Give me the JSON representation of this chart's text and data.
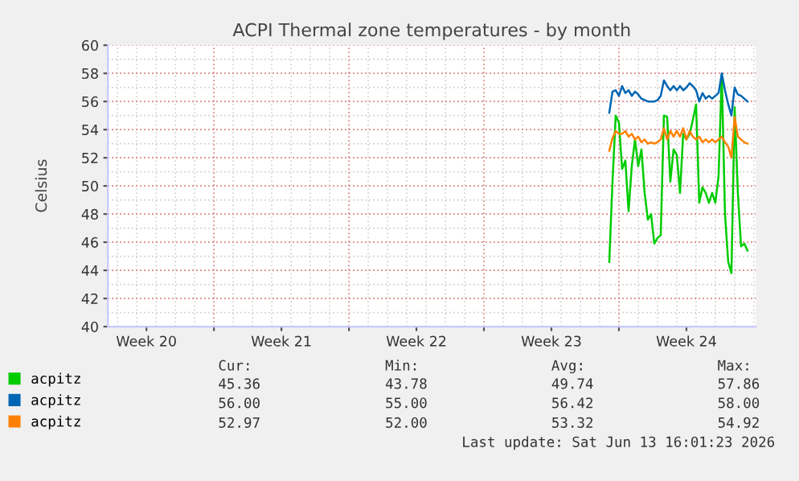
{
  "chart_data": {
    "type": "line",
    "title": "ACPI Thermal zone temperatures - by month",
    "ylabel": "Celsius",
    "x": [
      "2026-06-06T12:00",
      "2026-06-06T16:00",
      "2026-06-06T20:00",
      "2026-06-07T00:00",
      "2026-06-07T04:00",
      "2026-06-07T08:00",
      "2026-06-07T12:00",
      "2026-06-07T16:00",
      "2026-06-07T20:00",
      "2026-06-08T00:00",
      "2026-06-08T04:00",
      "2026-06-08T08:00",
      "2026-06-08T12:00",
      "2026-06-08T16:00",
      "2026-06-08T20:00",
      "2026-06-09T00:00",
      "2026-06-09T04:00",
      "2026-06-09T08:00",
      "2026-06-09T12:00",
      "2026-06-09T16:00",
      "2026-06-09T20:00",
      "2026-06-10T00:00",
      "2026-06-10T04:00",
      "2026-06-10T08:00",
      "2026-06-10T12:00",
      "2026-06-10T16:00",
      "2026-06-10T20:00",
      "2026-06-11T00:00",
      "2026-06-11T04:00",
      "2026-06-11T08:00",
      "2026-06-11T12:00",
      "2026-06-11T16:00",
      "2026-06-11T20:00",
      "2026-06-12T00:00",
      "2026-06-12T04:00",
      "2026-06-12T08:00",
      "2026-06-12T12:00",
      "2026-06-12T16:00",
      "2026-06-12T20:00",
      "2026-06-13T00:00",
      "2026-06-13T04:00",
      "2026-06-13T08:00",
      "2026-06-13T12:00",
      "2026-06-13T16:00"
    ],
    "series": [
      {
        "name": "acpitz",
        "color": "#00cc00",
        "values": [
          44.6,
          50.3,
          55.0,
          54.5,
          51.2,
          51.8,
          48.2,
          51.4,
          53.3,
          51.4,
          52.6,
          49.5,
          47.6,
          48.0,
          45.9,
          46.3,
          46.5,
          55.0,
          54.9,
          50.3,
          52.6,
          52.2,
          49.5,
          53.7,
          53.3,
          53.7,
          54.7,
          55.8,
          48.8,
          49.9,
          49.5,
          48.8,
          49.5,
          48.8,
          50.7,
          57.9,
          48.0,
          44.6,
          43.8,
          55.6,
          49.5,
          45.7,
          45.9,
          45.4
        ]
      },
      {
        "name": "acpitz",
        "color": "#0066b3",
        "values": [
          55.2,
          56.7,
          56.8,
          56.4,
          57.1,
          56.6,
          56.8,
          56.4,
          56.7,
          56.5,
          56.2,
          56.1,
          56.0,
          56.0,
          56.0,
          56.1,
          56.4,
          57.5,
          57.1,
          56.8,
          57.1,
          56.8,
          57.1,
          56.8,
          57.0,
          57.3,
          57.1,
          56.8,
          56.0,
          56.6,
          56.2,
          56.4,
          56.2,
          56.4,
          56.6,
          58.0,
          56.8,
          55.8,
          55.0,
          57.0,
          56.5,
          56.4,
          56.2,
          56.0
        ]
      },
      {
        "name": "acpitz",
        "color": "#ff8000",
        "values": [
          52.5,
          53.4,
          53.9,
          53.7,
          53.7,
          53.9,
          53.5,
          53.7,
          53.3,
          53.5,
          53.1,
          53.3,
          53.0,
          53.1,
          53.0,
          53.1,
          53.3,
          54.1,
          53.3,
          53.9,
          53.5,
          53.9,
          53.5,
          54.1,
          53.3,
          53.9,
          53.5,
          53.3,
          53.5,
          53.1,
          53.3,
          53.1,
          53.3,
          53.1,
          53.3,
          53.5,
          53.1,
          52.8,
          52.0,
          54.9,
          53.5,
          53.3,
          53.1,
          53.0
        ]
      }
    ],
    "xlim": [
      "2026-05-11T12:00",
      "2026-06-14T02:24"
    ],
    "xticks": [
      {
        "value": "2026-05-13T12:00",
        "label": "Week 20"
      },
      {
        "value": "2026-05-17T00:00",
        "label": null
      },
      {
        "value": "2026-05-20T12:00",
        "label": "Week 21"
      },
      {
        "value": "2026-05-24T00:00",
        "label": null
      },
      {
        "value": "2026-05-27T12:00",
        "label": "Week 22"
      },
      {
        "value": "2026-05-31T00:00",
        "label": null
      },
      {
        "value": "2026-06-03T12:00",
        "label": "Week 23"
      },
      {
        "value": "2026-06-07T00:00",
        "label": null
      },
      {
        "value": "2026-06-10T12:00",
        "label": "Week 24"
      }
    ],
    "ylim": [
      40,
      60
    ],
    "yticks": [
      40,
      42,
      44,
      46,
      48,
      50,
      52,
      54,
      56,
      58,
      60
    ],
    "grid": true,
    "legend": "bottom",
    "marker": "none",
    "line_style": "solid",
    "annotations": [
      "Cur:",
      "Min:",
      "Avg:",
      "Max:",
      "45.36",
      "43.78",
      "49.74",
      "57.86",
      "56.00",
      "55.00",
      "56.42",
      "58.00",
      "52.97",
      "52.00",
      "53.32",
      "54.92",
      "Last update: Sat Jun 13 16:01:23 2026"
    ]
  }
}
